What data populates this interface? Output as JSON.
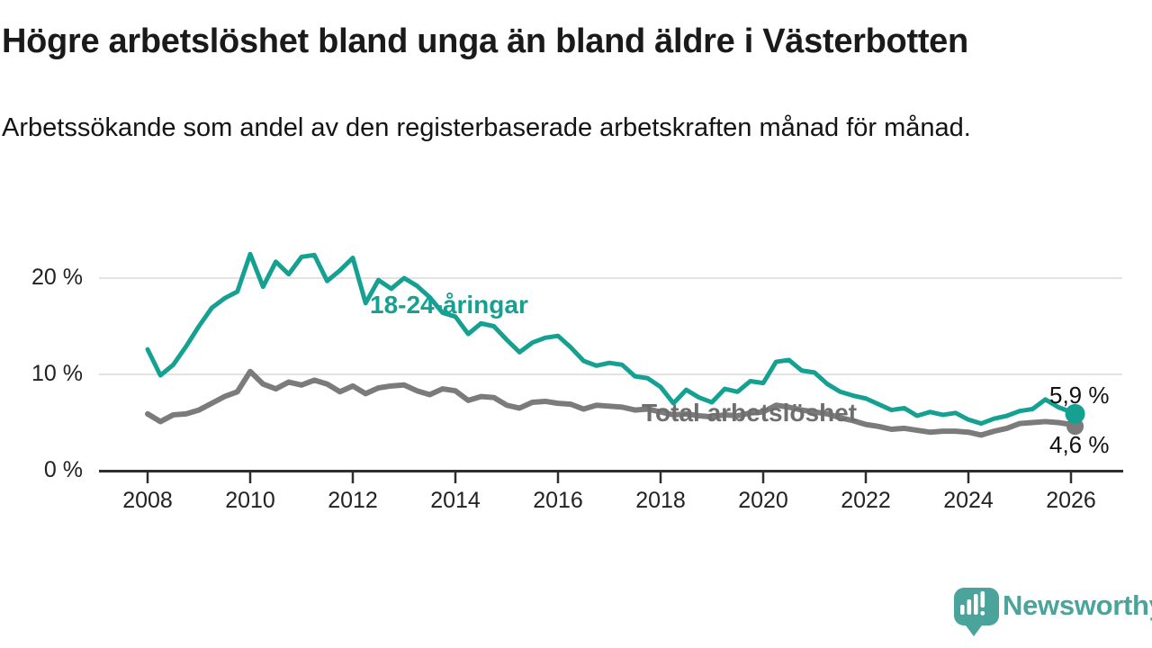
{
  "header": {
    "title": "Högre arbetslöshet bland unga än bland äldre i Västerbotten",
    "subtitle": "Arbetssökande som andel av den registerbaserade arbetskraften månad för månad."
  },
  "chart_data": {
    "type": "line",
    "title": "Högre arbetslöshet bland unga än bland äldre i Västerbotten",
    "subtitle": "Arbetssökande som andel av den registerbaserade arbetskraften månad för månad.",
    "x_unit": "year (decimal = month fraction)",
    "x": [
      2008.0,
      2008.25,
      2008.5,
      2008.75,
      2009.0,
      2009.25,
      2009.5,
      2009.75,
      2010.0,
      2010.25,
      2010.5,
      2010.75,
      2011.0,
      2011.25,
      2011.5,
      2011.75,
      2012.0,
      2012.25,
      2012.5,
      2012.75,
      2013.0,
      2013.25,
      2013.5,
      2013.75,
      2014.0,
      2014.25,
      2014.5,
      2014.75,
      2015.0,
      2015.25,
      2015.5,
      2015.75,
      2016.0,
      2016.25,
      2016.5,
      2016.75,
      2017.0,
      2017.25,
      2017.5,
      2017.75,
      2018.0,
      2018.25,
      2018.5,
      2018.75,
      2019.0,
      2019.25,
      2019.5,
      2019.75,
      2020.0,
      2020.25,
      2020.5,
      2020.75,
      2021.0,
      2021.25,
      2021.5,
      2021.75,
      2022.0,
      2022.25,
      2022.5,
      2022.75,
      2023.0,
      2023.25,
      2023.5,
      2023.75,
      2024.0,
      2024.25,
      2024.5,
      2024.75,
      2025.0,
      2025.25,
      2025.5,
      2025.75,
      2026.0,
      2026.08
    ],
    "series": [
      {
        "name": "18-24-åringar",
        "color": "#15a191",
        "end_label": "5,9 %",
        "end_value": 5.9,
        "values": [
          12.6,
          9.9,
          11.0,
          12.9,
          15.0,
          16.9,
          17.9,
          18.6,
          22.5,
          19.1,
          21.7,
          20.4,
          22.2,
          22.4,
          19.7,
          20.8,
          22.1,
          17.4,
          19.8,
          18.9,
          20.0,
          19.2,
          18.0,
          16.4,
          16.0,
          14.2,
          15.3,
          15.0,
          13.6,
          12.3,
          13.3,
          13.8,
          14.0,
          12.8,
          11.4,
          10.9,
          11.2,
          11.0,
          9.8,
          9.6,
          8.7,
          7.0,
          8.4,
          7.6,
          7.1,
          8.5,
          8.2,
          9.3,
          9.1,
          11.3,
          11.5,
          10.4,
          10.2,
          9.0,
          8.2,
          7.8,
          7.5,
          6.9,
          6.3,
          6.5,
          5.7,
          6.1,
          5.8,
          6.0,
          5.3,
          4.9,
          5.4,
          5.7,
          6.2,
          6.4,
          7.4,
          6.6,
          6.1,
          5.9
        ]
      },
      {
        "name": "Total arbetslöshet",
        "color": "#7b7b7b",
        "end_label": "4,6 %",
        "end_value": 4.6,
        "values": [
          5.9,
          5.1,
          5.8,
          5.9,
          6.3,
          7.0,
          7.7,
          8.2,
          10.3,
          9.0,
          8.5,
          9.2,
          8.9,
          9.4,
          9.0,
          8.2,
          8.8,
          8.0,
          8.6,
          8.8,
          8.9,
          8.3,
          7.9,
          8.5,
          8.3,
          7.3,
          7.7,
          7.6,
          6.8,
          6.5,
          7.1,
          7.2,
          7.0,
          6.9,
          6.4,
          6.8,
          6.7,
          6.6,
          6.3,
          6.4,
          6.1,
          5.8,
          5.9,
          5.7,
          5.6,
          5.8,
          5.7,
          6.0,
          6.1,
          6.8,
          6.6,
          6.3,
          6.1,
          5.9,
          5.5,
          5.2,
          4.8,
          4.6,
          4.3,
          4.4,
          4.2,
          4.0,
          4.1,
          4.1,
          4.0,
          3.7,
          4.1,
          4.4,
          4.9,
          5.0,
          5.1,
          5.0,
          4.8,
          4.6
        ]
      }
    ],
    "xticks": [
      2008,
      2010,
      2012,
      2014,
      2016,
      2018,
      2020,
      2022,
      2024,
      2026
    ],
    "yticks": [
      {
        "value": 20,
        "label": "20 %"
      },
      {
        "value": 10,
        "label": "10 %"
      },
      {
        "value": 0,
        "label": "0 %"
      }
    ],
    "xlim": [
      2007.05,
      2027.1
    ],
    "ylim": [
      0,
      25
    ],
    "grid": "horizontal",
    "legend": "inline-labels"
  },
  "footer": {
    "brand": "Newsworthy",
    "logo_color": "#4ba49c"
  }
}
